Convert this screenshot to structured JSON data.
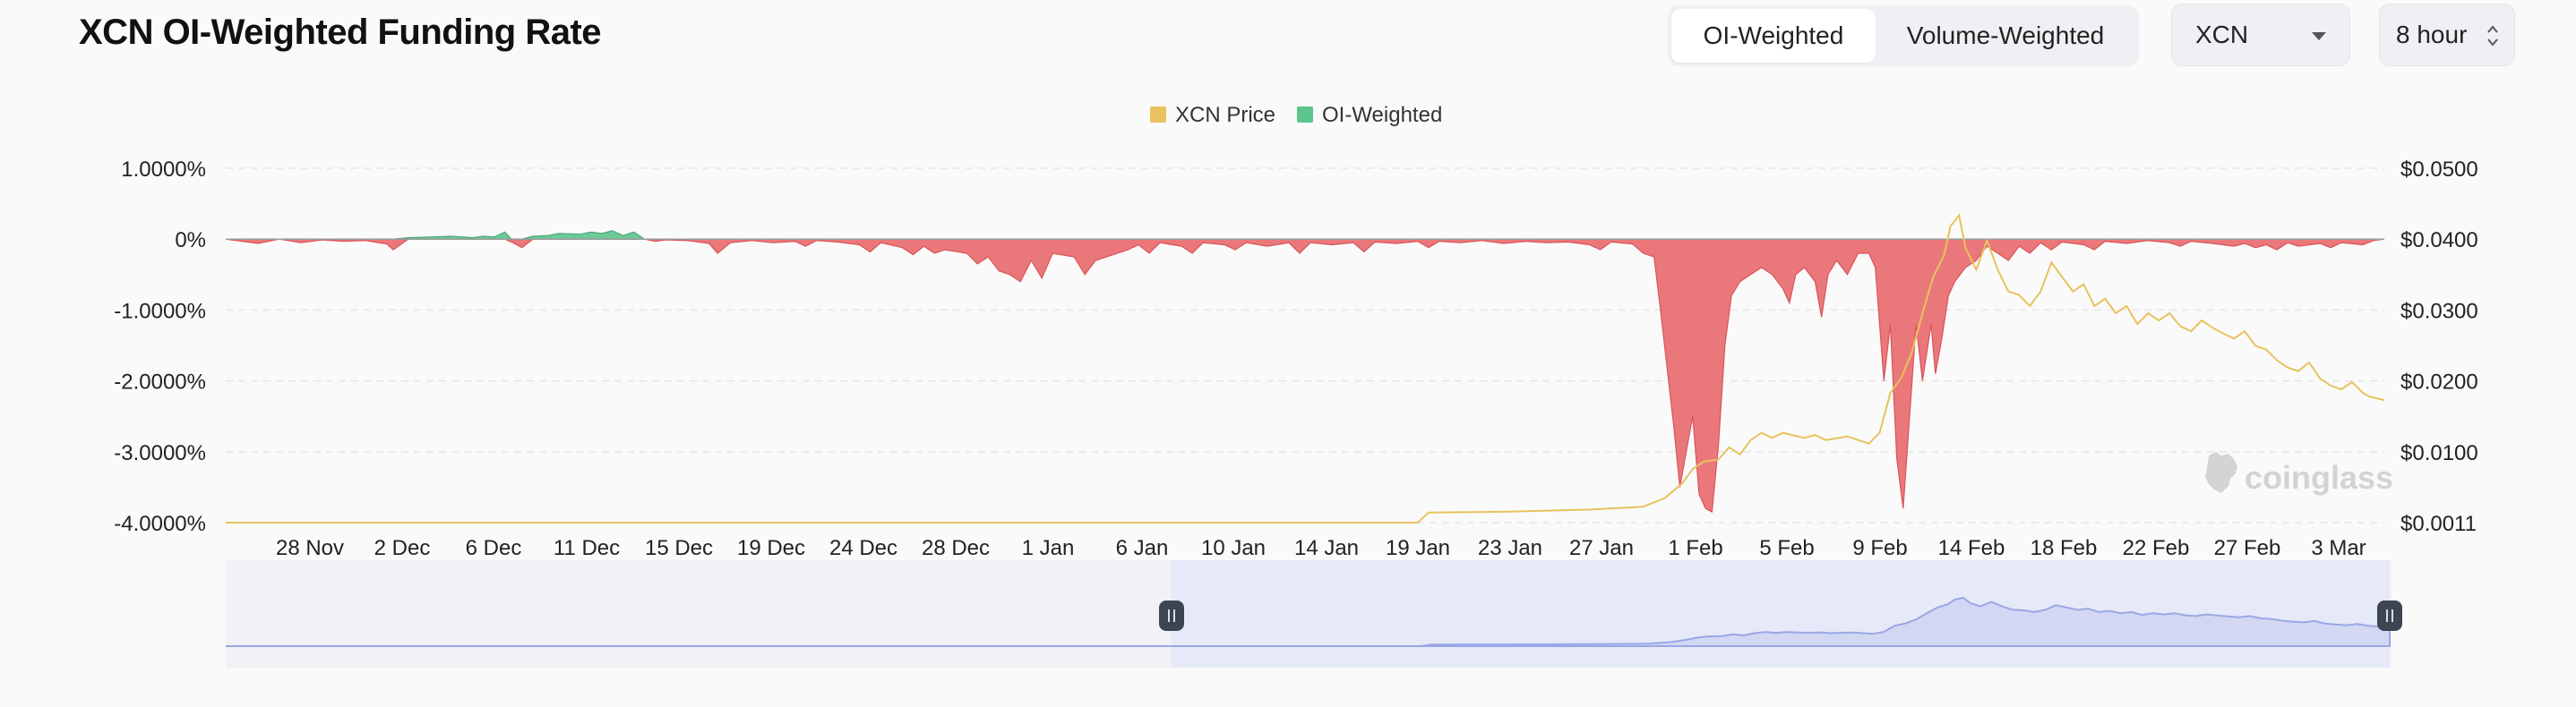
{
  "header": {
    "title": "XCN OI-Weighted Funding Rate",
    "tabs": [
      {
        "label": "OI-Weighted",
        "active": true
      },
      {
        "label": "Volume-Weighted",
        "active": false
      }
    ],
    "coin_select": "XCN",
    "interval_select": "8 hour"
  },
  "watermark": "coinglass",
  "chart_data": {
    "type": "area",
    "legend": {
      "placement": "top-center",
      "items": [
        {
          "label": "XCN Price",
          "color": "#e8c25e"
        },
        {
          "label": "OI-Weighted",
          "color": "#e8696c"
        }
      ]
    },
    "x_tick_labels": [
      "28 Nov",
      "2 Dec",
      "6 Dec",
      "11 Dec",
      "15 Dec",
      "19 Dec",
      "24 Dec",
      "28 Dec",
      "1 Jan",
      "6 Jan",
      "10 Jan",
      "14 Jan",
      "19 Jan",
      "23 Jan",
      "27 Jan",
      "1 Feb",
      "5 Feb",
      "9 Feb",
      "14 Feb",
      "18 Feb",
      "22 Feb",
      "27 Feb",
      "3 Mar"
    ],
    "x_range": [
      -4.5,
      96.0
    ],
    "y_left": {
      "ticks": [
        "1.0000%",
        "0%",
        "-1.0000%",
        "-2.0000%",
        "-3.0000%",
        "-4.0000%"
      ],
      "range": [
        -4.0,
        1.0
      ],
      "unit": "%"
    },
    "y_right": {
      "ticks": [
        "$0.0500",
        "$0.0400",
        "$0.0300",
        "$0.0200",
        "$0.0100",
        "$0.0011"
      ],
      "range": [
        0.0011,
        0.05
      ],
      "unit": "$"
    },
    "grid": true,
    "positive_color": "#5cc48d",
    "negative_color": "#e8696c",
    "price_color": "#e8c25e",
    "series": [
      {
        "name": "OI-Weighted",
        "axis": "left",
        "points": [
          [
            -4.5,
            0
          ],
          [
            -4,
            -0.02
          ],
          [
            -3,
            -0.06
          ],
          [
            -2,
            0
          ],
          [
            -1,
            -0.05
          ],
          [
            0,
            -0.01
          ],
          [
            1,
            -0.03
          ],
          [
            2,
            -0.02
          ],
          [
            3,
            -0.07
          ],
          [
            3.3,
            -0.15
          ],
          [
            4,
            0.02
          ],
          [
            5,
            0.03
          ],
          [
            6,
            0.04
          ],
          [
            7,
            0.02
          ],
          [
            7.5,
            0.04
          ],
          [
            8,
            0.03
          ],
          [
            8.5,
            0.1
          ],
          [
            8.8,
            -0.04
          ],
          [
            9.3,
            -0.12
          ],
          [
            9.8,
            0.04
          ],
          [
            10.5,
            0.05
          ],
          [
            11,
            0.08
          ],
          [
            12,
            0.07
          ],
          [
            12.5,
            0.1
          ],
          [
            13,
            0.08
          ],
          [
            13.5,
            0.12
          ],
          [
            14,
            0.05
          ],
          [
            14.5,
            0.1
          ],
          [
            15,
            0
          ],
          [
            15.5,
            -0.03
          ],
          [
            16,
            -0.01
          ],
          [
            17,
            -0.02
          ],
          [
            17.5,
            -0.04
          ],
          [
            18,
            -0.06
          ],
          [
            18.4,
            -0.2
          ],
          [
            19,
            -0.05
          ],
          [
            20,
            -0.02
          ],
          [
            21,
            -0.05
          ],
          [
            22,
            -0.03
          ],
          [
            22.5,
            -0.1
          ],
          [
            23,
            -0.02
          ],
          [
            24,
            -0.04
          ],
          [
            25,
            -0.08
          ],
          [
            25.5,
            -0.18
          ],
          [
            26,
            -0.05
          ],
          [
            27,
            -0.12
          ],
          [
            27.5,
            -0.22
          ],
          [
            28,
            -0.1
          ],
          [
            28.5,
            -0.2
          ],
          [
            29,
            -0.15
          ],
          [
            30,
            -0.2
          ],
          [
            30.5,
            -0.35
          ],
          [
            31,
            -0.25
          ],
          [
            31.5,
            -0.45
          ],
          [
            32,
            -0.5
          ],
          [
            32.5,
            -0.6
          ],
          [
            33,
            -0.3
          ],
          [
            33.5,
            -0.55
          ],
          [
            34,
            -0.2
          ],
          [
            35,
            -0.25
          ],
          [
            35.5,
            -0.5
          ],
          [
            36,
            -0.3
          ],
          [
            37,
            -0.2
          ],
          [
            37.5,
            -0.15
          ],
          [
            38,
            -0.08
          ],
          [
            38.5,
            -0.2
          ],
          [
            39,
            -0.05
          ],
          [
            40,
            -0.1
          ],
          [
            40.5,
            -0.2
          ],
          [
            41,
            -0.05
          ],
          [
            42,
            -0.08
          ],
          [
            42.5,
            -0.15
          ],
          [
            43,
            -0.05
          ],
          [
            44,
            -0.1
          ],
          [
            45,
            -0.05
          ],
          [
            45.5,
            -0.2
          ],
          [
            46,
            -0.05
          ],
          [
            47,
            -0.08
          ],
          [
            48,
            -0.05
          ],
          [
            48.5,
            -0.18
          ],
          [
            49,
            -0.04
          ],
          [
            50,
            -0.06
          ],
          [
            51,
            -0.03
          ],
          [
            51.5,
            -0.12
          ],
          [
            52,
            -0.03
          ],
          [
            53,
            -0.05
          ],
          [
            54,
            -0.02
          ],
          [
            55,
            -0.06
          ],
          [
            56,
            -0.03
          ],
          [
            57,
            -0.05
          ],
          [
            58,
            -0.04
          ],
          [
            59,
            -0.08
          ],
          [
            59.5,
            -0.15
          ],
          [
            60,
            -0.04
          ],
          [
            61,
            -0.07
          ],
          [
            61.5,
            -0.2
          ],
          [
            62,
            -0.25
          ],
          [
            62.3,
            -1.0
          ],
          [
            62.6,
            -1.8
          ],
          [
            62.9,
            -2.6
          ],
          [
            63.2,
            -3.5
          ],
          [
            63.5,
            -3.0
          ],
          [
            63.8,
            -2.5
          ],
          [
            64.1,
            -3.6
          ],
          [
            64.4,
            -3.8
          ],
          [
            64.7,
            -3.85
          ],
          [
            65,
            -2.9
          ],
          [
            65.3,
            -1.5
          ],
          [
            65.6,
            -0.8
          ],
          [
            66,
            -0.6
          ],
          [
            66.5,
            -0.5
          ],
          [
            67,
            -0.4
          ],
          [
            67.5,
            -0.5
          ],
          [
            68,
            -0.7
          ],
          [
            68.3,
            -0.9
          ],
          [
            68.6,
            -0.5
          ],
          [
            69,
            -0.4
          ],
          [
            69.5,
            -0.6
          ],
          [
            69.8,
            -1.1
          ],
          [
            70.1,
            -0.5
          ],
          [
            70.5,
            -0.3
          ],
          [
            71,
            -0.5
          ],
          [
            71.5,
            -0.2
          ],
          [
            72,
            -0.2
          ],
          [
            72.3,
            -0.4
          ],
          [
            72.7,
            -2.0
          ],
          [
            73,
            -1.2
          ],
          [
            73.3,
            -3.1
          ],
          [
            73.6,
            -3.8
          ],
          [
            73.9,
            -2.5
          ],
          [
            74.2,
            -1.2
          ],
          [
            74.5,
            -2.0
          ],
          [
            74.9,
            -1.2
          ],
          [
            75.1,
            -1.9
          ],
          [
            75.4,
            -1.4
          ],
          [
            75.7,
            -0.8
          ],
          [
            76,
            -0.6
          ],
          [
            76.5,
            -0.4
          ],
          [
            77,
            -0.3
          ],
          [
            77.5,
            -0.1
          ],
          [
            78,
            -0.2
          ],
          [
            78.5,
            -0.3
          ],
          [
            79,
            -0.1
          ],
          [
            79.5,
            -0.2
          ],
          [
            80,
            -0.05
          ],
          [
            80.5,
            -0.15
          ],
          [
            81,
            -0.04
          ],
          [
            82,
            -0.08
          ],
          [
            82.5,
            -0.15
          ],
          [
            83,
            -0.03
          ],
          [
            84,
            -0.06
          ],
          [
            85,
            -0.02
          ],
          [
            86,
            -0.05
          ],
          [
            86.5,
            -0.1
          ],
          [
            87,
            -0.03
          ],
          [
            88,
            -0.06
          ],
          [
            89,
            -0.1
          ],
          [
            89.5,
            -0.06
          ],
          [
            90,
            -0.12
          ],
          [
            90.5,
            -0.08
          ],
          [
            91,
            -0.15
          ],
          [
            91.5,
            -0.05
          ],
          [
            92,
            -0.1
          ],
          [
            93,
            -0.06
          ],
          [
            93.5,
            -0.12
          ],
          [
            94,
            -0.05
          ],
          [
            95,
            -0.08
          ],
          [
            95.5,
            -0.02
          ],
          [
            96,
            0
          ]
        ]
      },
      {
        "name": "XCN Price",
        "axis": "right",
        "points": [
          [
            -4.5,
            0.0011
          ],
          [
            51,
            0.0011
          ],
          [
            51.5,
            0.0025
          ],
          [
            55,
            0.0026
          ],
          [
            59,
            0.0029
          ],
          [
            61.5,
            0.0033
          ],
          [
            62.5,
            0.0045
          ],
          [
            63.3,
            0.0065
          ],
          [
            63.8,
            0.0085
          ],
          [
            64.3,
            0.0095
          ],
          [
            65,
            0.0098
          ],
          [
            65.5,
            0.0115
          ],
          [
            66,
            0.0105
          ],
          [
            66.5,
            0.0125
          ],
          [
            67,
            0.0135
          ],
          [
            67.5,
            0.0128
          ],
          [
            68,
            0.0135
          ],
          [
            69,
            0.0128
          ],
          [
            69.5,
            0.0132
          ],
          [
            70,
            0.0125
          ],
          [
            71,
            0.013
          ],
          [
            72,
            0.012
          ],
          [
            72.5,
            0.0135
          ],
          [
            73,
            0.019
          ],
          [
            73.5,
            0.021
          ],
          [
            74,
            0.0245
          ],
          [
            74.5,
            0.03
          ],
          [
            75,
            0.035
          ],
          [
            75.5,
            0.038
          ],
          [
            75.8,
            0.042
          ],
          [
            76.2,
            0.0435
          ],
          [
            76.5,
            0.039
          ],
          [
            77,
            0.036
          ],
          [
            77.5,
            0.04
          ],
          [
            78,
            0.036
          ],
          [
            78.5,
            0.033
          ],
          [
            79,
            0.0325
          ],
          [
            79.5,
            0.031
          ],
          [
            80,
            0.033
          ],
          [
            80.5,
            0.037
          ],
          [
            81,
            0.035
          ],
          [
            81.5,
            0.033
          ],
          [
            82,
            0.034
          ],
          [
            82.5,
            0.031
          ],
          [
            83,
            0.032
          ],
          [
            83.5,
            0.03
          ],
          [
            84,
            0.031
          ],
          [
            84.5,
            0.0285
          ],
          [
            85,
            0.03
          ],
          [
            85.5,
            0.029
          ],
          [
            86,
            0.03
          ],
          [
            86.5,
            0.0282
          ],
          [
            87,
            0.0275
          ],
          [
            87.5,
            0.029
          ],
          [
            88,
            0.028
          ],
          [
            88.5,
            0.0272
          ],
          [
            89,
            0.0265
          ],
          [
            89.5,
            0.0275
          ],
          [
            90,
            0.0255
          ],
          [
            90.5,
            0.025
          ],
          [
            91,
            0.0235
          ],
          [
            91.5,
            0.0225
          ],
          [
            92,
            0.022
          ],
          [
            92.5,
            0.0232
          ],
          [
            93,
            0.021
          ],
          [
            93.5,
            0.02
          ],
          [
            94,
            0.0195
          ],
          [
            94.5,
            0.0205
          ],
          [
            95,
            0.019
          ],
          [
            95.3,
            0.0185
          ],
          [
            96,
            0.018
          ]
        ]
      }
    ]
  }
}
